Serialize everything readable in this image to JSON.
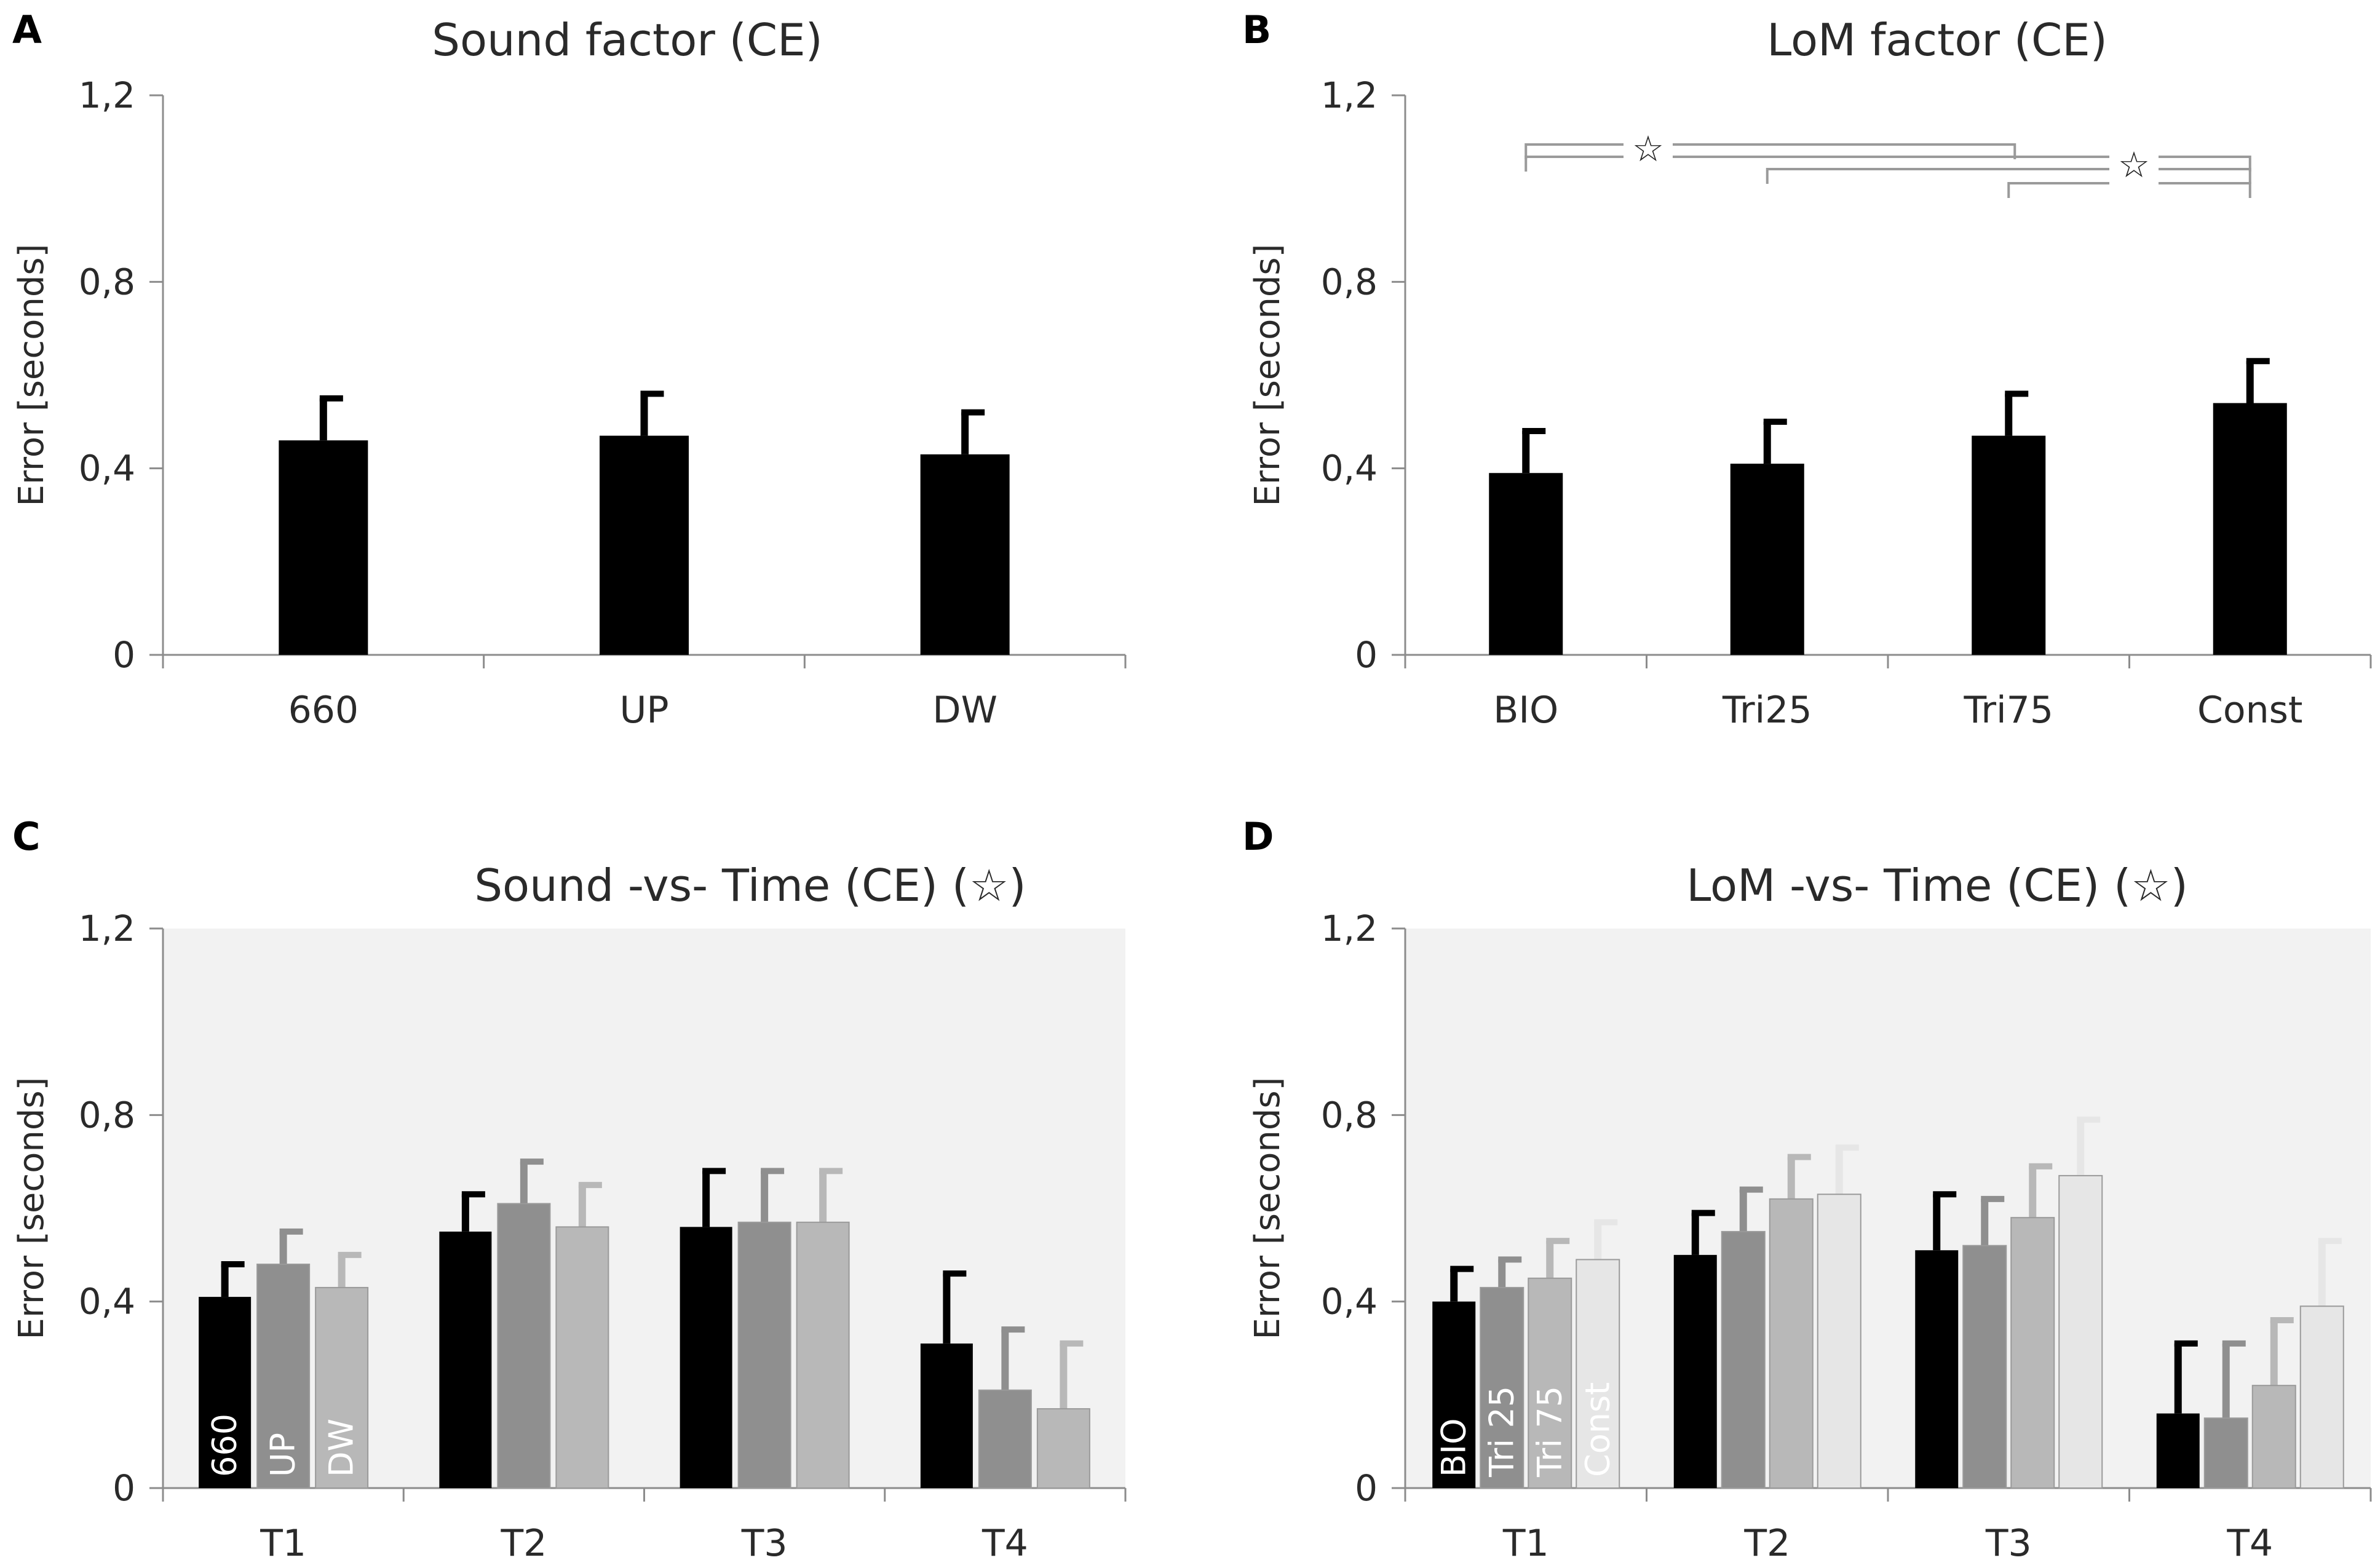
{
  "figure_axis": {
    "ylabel": "Error  [seconds]",
    "yticks": [
      "0",
      "0,4",
      "0,8",
      "1,2"
    ],
    "significance_marker": "☆"
  },
  "colors": {
    "black": "#000000",
    "dark_gray": "#8f8f8f",
    "mid_gray": "#b8b8b8",
    "light_gray": "#e6e6e6",
    "plot_bg": "#f2f2f2",
    "axis": "#8c8c8c"
  },
  "chart_data": [
    {
      "id": "A",
      "panel_letter": "A",
      "type": "bar",
      "title": "Sound factor (CE)",
      "ylabel": "Error  [seconds]",
      "ylim": [
        0,
        1.2
      ],
      "categories": [
        "660",
        "UP",
        "DW"
      ],
      "series": [
        {
          "name": "Sound",
          "values": [
            0.46,
            0.47,
            0.43
          ],
          "errors": [
            0.09,
            0.09,
            0.09
          ],
          "color": "#000000"
        }
      ]
    },
    {
      "id": "B",
      "panel_letter": "B",
      "type": "bar",
      "title": "LoM factor (CE)",
      "ylabel": "Error  [seconds]",
      "ylim": [
        0,
        1.2
      ],
      "categories": [
        "BIO",
        "Tri25",
        "Tri75",
        "Const"
      ],
      "series": [
        {
          "name": "LoM",
          "values": [
            0.39,
            0.41,
            0.47,
            0.54
          ],
          "errors": [
            0.09,
            0.09,
            0.09,
            0.09
          ],
          "color": "#000000"
        }
      ],
      "annotations": [
        {
          "type": "significance",
          "from": "BIO",
          "to": "Const",
          "label": "☆"
        },
        {
          "type": "significance",
          "from": "Tri25",
          "to": "Const",
          "label": "☆"
        }
      ]
    },
    {
      "id": "C",
      "panel_letter": "C",
      "type": "bar",
      "title": "Sound -vs- Time  (CE)  (☆)",
      "ylabel": "Error  [seconds]",
      "ylim": [
        0,
        1.2
      ],
      "categories": [
        "T1",
        "T2",
        "T3",
        "T4"
      ],
      "series": [
        {
          "name": "660",
          "values": [
            0.41,
            0.55,
            0.56,
            0.31
          ],
          "errors": [
            0.07,
            0.08,
            0.12,
            0.15
          ],
          "color": "#000000",
          "label_color": "#ffffff"
        },
        {
          "name": "UP",
          "values": [
            0.48,
            0.61,
            0.57,
            0.21
          ],
          "errors": [
            0.07,
            0.09,
            0.11,
            0.13
          ],
          "color": "#8f8f8f",
          "label_color": "#ffffff"
        },
        {
          "name": "DW",
          "values": [
            0.43,
            0.56,
            0.57,
            0.17
          ],
          "errors": [
            0.07,
            0.09,
            0.11,
            0.14
          ],
          "color": "#b8b8b8",
          "label_color": "#ffffff"
        }
      ]
    },
    {
      "id": "D",
      "panel_letter": "D",
      "type": "bar",
      "title": "LoM -vs- Time  (CE)  (☆)",
      "ylabel": "Error  [seconds]",
      "ylim": [
        0,
        1.2
      ],
      "categories": [
        "T1",
        "T2",
        "T3",
        "T4"
      ],
      "series": [
        {
          "name": "BIO",
          "values": [
            0.4,
            0.5,
            0.51,
            0.16
          ],
          "errors": [
            0.07,
            0.09,
            0.12,
            0.15
          ],
          "color": "#000000",
          "label_color": "#ffffff"
        },
        {
          "name": "Tri 25",
          "values": [
            0.43,
            0.55,
            0.52,
            0.15
          ],
          "errors": [
            0.06,
            0.09,
            0.1,
            0.16
          ],
          "color": "#8f8f8f",
          "label_color": "#ffffff"
        },
        {
          "name": "Tri 75",
          "values": [
            0.45,
            0.62,
            0.58,
            0.22
          ],
          "errors": [
            0.08,
            0.09,
            0.11,
            0.14
          ],
          "color": "#b8b8b8",
          "label_color": "#ffffff"
        },
        {
          "name": "Const",
          "values": [
            0.49,
            0.63,
            0.67,
            0.39
          ],
          "errors": [
            0.08,
            0.1,
            0.12,
            0.14
          ],
          "color": "#e6e6e6",
          "label_color": "#ffffff"
        }
      ]
    }
  ]
}
